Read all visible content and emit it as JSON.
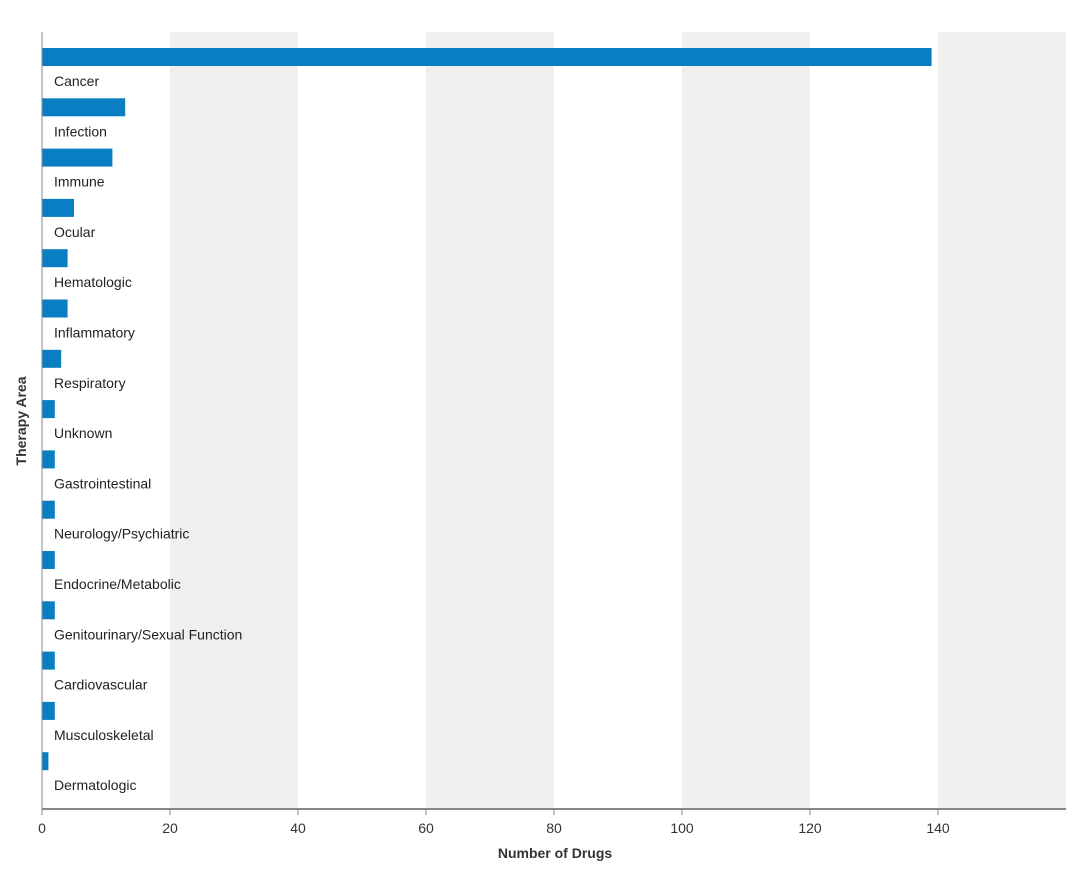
{
  "chart_data": {
    "type": "bar",
    "orientation": "horizontal",
    "xlabel": "Number of Drugs",
    "ylabel": "Therapy Area",
    "xlim": [
      0,
      160
    ],
    "xticks": [
      0,
      20,
      40,
      60,
      80,
      100,
      120,
      140
    ],
    "grid": "alternating vertical bands",
    "legend": "none",
    "categories": [
      "Cancer",
      "Infection",
      "Immune",
      "Ocular",
      "Hematologic",
      "Inflammatory",
      "Respiratory",
      "Unknown",
      "Gastrointestinal",
      "Neurology/Psychiatric",
      "Endocrine/Metabolic",
      "Genitourinary/Sexual Function",
      "Cardiovascular",
      "Musculoskeletal",
      "Dermatologic"
    ],
    "values": [
      139,
      13,
      11,
      5,
      4,
      4,
      3,
      2,
      2,
      2,
      2,
      2,
      2,
      2,
      1
    ],
    "colors": {
      "bar": "#0a7ec2",
      "band": "#efefef",
      "axis": "#888888"
    }
  }
}
